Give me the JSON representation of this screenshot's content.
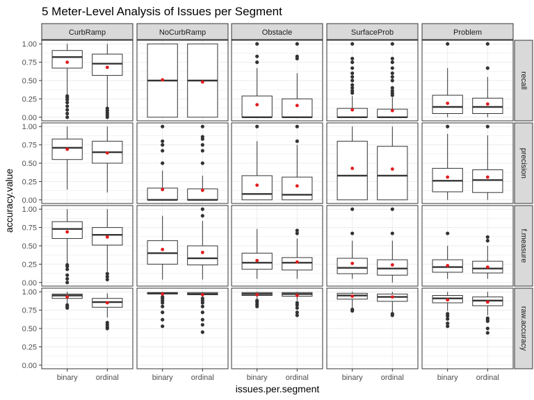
{
  "chart_data": {
    "type": "boxplot",
    "title": "5 Meter-Level Analysis of Issues per Segment",
    "xlabel": "issues.per.segment",
    "ylabel": "accuracy.value",
    "columns": [
      "CurbRamp",
      "NoCurbRamp",
      "Obstacle",
      "SurfaceProb",
      "Problem"
    ],
    "rows": [
      "recall",
      "precision",
      "f.measure",
      "raw.accuracy"
    ],
    "categories": [
      "binary",
      "ordinal"
    ],
    "ylim": [
      0,
      1
    ],
    "yticks": [
      "0.00",
      "0.25",
      "0.50",
      "0.75",
      "1.00"
    ],
    "colors": {
      "strip_bg": "#d9d9d9",
      "panel_border": "#333333",
      "grid": "#ebebeb",
      "box": "#333333",
      "outlier": "#333333",
      "mean": "#e41a1c"
    },
    "series": [
      {
        "row": "recall",
        "column": "CurbRamp",
        "category": "binary",
        "whisker_low": 0.3,
        "q1": 0.67,
        "median": 0.82,
        "q3": 0.91,
        "whisker_high": 1.0,
        "mean": 0.75,
        "outliers": [
          0.0,
          0.05,
          0.1,
          0.15,
          0.2,
          0.24,
          0.27,
          0.29
        ]
      },
      {
        "row": "recall",
        "column": "CurbRamp",
        "category": "ordinal",
        "whisker_low": 0.14,
        "q1": 0.57,
        "median": 0.73,
        "q3": 0.86,
        "whisker_high": 1.0,
        "mean": 0.68,
        "outliers": [
          0.0,
          0.03,
          0.06,
          0.09,
          0.12
        ]
      },
      {
        "row": "recall",
        "column": "NoCurbRamp",
        "category": "binary",
        "whisker_low": 0.0,
        "q1": 0.0,
        "median": 0.5,
        "q3": 1.0,
        "whisker_high": 1.0,
        "mean": 0.51,
        "outliers": []
      },
      {
        "row": "recall",
        "column": "NoCurbRamp",
        "category": "ordinal",
        "whisker_low": 0.0,
        "q1": 0.0,
        "median": 0.5,
        "q3": 1.0,
        "whisker_high": 1.0,
        "mean": 0.48,
        "outliers": []
      },
      {
        "row": "recall",
        "column": "Obstacle",
        "category": "binary",
        "whisker_low": 0.0,
        "q1": 0.0,
        "median": 0.0,
        "q3": 0.29,
        "whisker_high": 0.67,
        "mean": 0.17,
        "outliers": [
          0.75,
          0.83,
          1.0
        ]
      },
      {
        "row": "recall",
        "column": "Obstacle",
        "category": "ordinal",
        "whisker_low": 0.0,
        "q1": 0.0,
        "median": 0.0,
        "q3": 0.25,
        "whisker_high": 0.6,
        "mean": 0.16,
        "outliers": [
          0.8,
          0.83,
          1.0
        ]
      },
      {
        "row": "recall",
        "column": "SurfaceProb",
        "category": "binary",
        "whisker_low": 0.0,
        "q1": 0.0,
        "median": 0.0,
        "q3": 0.12,
        "whisker_high": 0.29,
        "mean": 0.1,
        "outliers": [
          0.33,
          0.36,
          0.4,
          0.44,
          0.5,
          0.55,
          0.6,
          0.67,
          0.75,
          0.8,
          1.0
        ]
      },
      {
        "row": "recall",
        "column": "SurfaceProb",
        "category": "ordinal",
        "whisker_low": 0.0,
        "q1": 0.0,
        "median": 0.0,
        "q3": 0.11,
        "whisker_high": 0.27,
        "mean": 0.09,
        "outliers": [
          0.3,
          0.33,
          0.36,
          0.4,
          0.5,
          0.55,
          0.6,
          0.67,
          0.75,
          0.8,
          1.0
        ]
      },
      {
        "row": "recall",
        "column": "Problem",
        "category": "binary",
        "whisker_low": 0.0,
        "q1": 0.05,
        "median": 0.14,
        "q3": 0.3,
        "whisker_high": 0.67,
        "mean": 0.19,
        "outliers": [
          1.0
        ]
      },
      {
        "row": "recall",
        "column": "Problem",
        "category": "ordinal",
        "whisker_low": 0.0,
        "q1": 0.05,
        "median": 0.14,
        "q3": 0.26,
        "whisker_high": 0.55,
        "mean": 0.18,
        "outliers": [
          0.67,
          1.0
        ]
      },
      {
        "row": "precision",
        "column": "CurbRamp",
        "category": "binary",
        "whisker_low": 0.14,
        "q1": 0.55,
        "median": 0.71,
        "q3": 0.83,
        "whisker_high": 1.0,
        "mean": 0.69,
        "outliers": []
      },
      {
        "row": "precision",
        "column": "CurbRamp",
        "category": "ordinal",
        "whisker_low": 0.1,
        "q1": 0.5,
        "median": 0.65,
        "q3": 0.8,
        "whisker_high": 1.0,
        "mean": 0.64,
        "outliers": []
      },
      {
        "row": "precision",
        "column": "NoCurbRamp",
        "category": "binary",
        "whisker_low": 0.0,
        "q1": 0.0,
        "median": 0.0,
        "q3": 0.16,
        "whisker_high": 0.4,
        "mean": 0.14,
        "outliers": [
          0.5,
          0.67,
          0.75,
          0.8,
          1.0
        ]
      },
      {
        "row": "precision",
        "column": "NoCurbRamp",
        "category": "ordinal",
        "whisker_low": 0.0,
        "q1": 0.0,
        "median": 0.0,
        "q3": 0.15,
        "whisker_high": 0.33,
        "mean": 0.13,
        "outliers": [
          0.5,
          0.67,
          0.75,
          0.83,
          0.86,
          1.0
        ]
      },
      {
        "row": "precision",
        "column": "Obstacle",
        "category": "binary",
        "whisker_low": 0.0,
        "q1": 0.0,
        "median": 0.08,
        "q3": 0.33,
        "whisker_high": 0.8,
        "mean": 0.2,
        "outliers": [
          1.0
        ]
      },
      {
        "row": "precision",
        "column": "Obstacle",
        "category": "ordinal",
        "whisker_low": 0.0,
        "q1": 0.0,
        "median": 0.07,
        "q3": 0.31,
        "whisker_high": 0.75,
        "mean": 0.19,
        "outliers": [
          0.8,
          1.0
        ]
      },
      {
        "row": "precision",
        "column": "SurfaceProb",
        "category": "binary",
        "whisker_low": 0.0,
        "q1": 0.0,
        "median": 0.33,
        "q3": 0.8,
        "whisker_high": 1.0,
        "mean": 0.43,
        "outliers": []
      },
      {
        "row": "precision",
        "column": "SurfaceProb",
        "category": "ordinal",
        "whisker_low": 0.0,
        "q1": 0.0,
        "median": 0.33,
        "q3": 0.73,
        "whisker_high": 1.0,
        "mean": 0.42,
        "outliers": []
      },
      {
        "row": "precision",
        "column": "Problem",
        "category": "binary",
        "whisker_low": 0.0,
        "q1": 0.11,
        "median": 0.26,
        "q3": 0.43,
        "whisker_high": 0.9,
        "mean": 0.31,
        "outliers": [
          1.0
        ]
      },
      {
        "row": "precision",
        "column": "Problem",
        "category": "ordinal",
        "whisker_low": 0.0,
        "q1": 0.1,
        "median": 0.27,
        "q3": 0.41,
        "whisker_high": 0.88,
        "mean": 0.31,
        "outliers": [
          1.0
        ]
      },
      {
        "row": "f.measure",
        "column": "CurbRamp",
        "category": "binary",
        "whisker_low": 0.25,
        "q1": 0.6,
        "median": 0.73,
        "q3": 0.83,
        "whisker_high": 1.0,
        "mean": 0.69,
        "outliers": [
          0.0,
          0.05,
          0.1,
          0.18,
          0.22,
          0.24
        ]
      },
      {
        "row": "f.measure",
        "column": "CurbRamp",
        "category": "ordinal",
        "whisker_low": 0.15,
        "q1": 0.51,
        "median": 0.65,
        "q3": 0.75,
        "whisker_high": 1.0,
        "mean": 0.62,
        "outliers": [
          0.04,
          0.08,
          0.12
        ]
      },
      {
        "row": "f.measure",
        "column": "NoCurbRamp",
        "category": "binary",
        "whisker_low": 0.04,
        "q1": 0.25,
        "median": 0.4,
        "q3": 0.57,
        "whisker_high": 0.91,
        "mean": 0.45,
        "outliers": []
      },
      {
        "row": "f.measure",
        "column": "NoCurbRamp",
        "category": "ordinal",
        "whisker_low": 0.04,
        "q1": 0.24,
        "median": 0.33,
        "q3": 0.5,
        "whisker_high": 0.84,
        "mean": 0.41,
        "outliers": [
          0.91,
          1.0
        ]
      },
      {
        "row": "f.measure",
        "column": "Obstacle",
        "category": "binary",
        "whisker_low": 0.05,
        "q1": 0.18,
        "median": 0.27,
        "q3": 0.4,
        "whisker_high": 0.73,
        "mean": 0.3,
        "outliers": []
      },
      {
        "row": "f.measure",
        "column": "Obstacle",
        "category": "ordinal",
        "whisker_low": 0.05,
        "q1": 0.17,
        "median": 0.27,
        "q3": 0.34,
        "whisker_high": 0.6,
        "mean": 0.28,
        "outliers": [
          0.67,
          0.71
        ]
      },
      {
        "row": "f.measure",
        "column": "SurfaceProb",
        "category": "binary",
        "whisker_low": 0.05,
        "q1": 0.12,
        "median": 0.2,
        "q3": 0.33,
        "whisker_high": 0.57,
        "mean": 0.26,
        "outliers": [
          0.67,
          1.0
        ]
      },
      {
        "row": "f.measure",
        "column": "SurfaceProb",
        "category": "ordinal",
        "whisker_low": 0.0,
        "q1": 0.1,
        "median": 0.19,
        "q3": 0.31,
        "whisker_high": 0.57,
        "mean": 0.24,
        "outliers": [
          0.67,
          1.0
        ]
      },
      {
        "row": "f.measure",
        "column": "Problem",
        "category": "binary",
        "whisker_low": 0.05,
        "q1": 0.14,
        "median": 0.21,
        "q3": 0.31,
        "whisker_high": 0.5,
        "mean": 0.23,
        "outliers": [
          0.67
        ]
      },
      {
        "row": "f.measure",
        "column": "Problem",
        "category": "ordinal",
        "whisker_low": 0.05,
        "q1": 0.13,
        "median": 0.19,
        "q3": 0.29,
        "whisker_high": 0.5,
        "mean": 0.21,
        "outliers": [
          0.57,
          0.62
        ]
      },
      {
        "row": "raw.accuracy",
        "column": "CurbRamp",
        "category": "binary",
        "whisker_low": 0.83,
        "q1": 0.91,
        "median": 0.95,
        "q3": 0.97,
        "whisker_high": 1.0,
        "mean": 0.93,
        "outliers": [
          0.78,
          0.8,
          0.82
        ]
      },
      {
        "row": "raw.accuracy",
        "column": "CurbRamp",
        "category": "ordinal",
        "whisker_low": 0.65,
        "q1": 0.79,
        "median": 0.86,
        "q3": 0.91,
        "whisker_high": 0.98,
        "mean": 0.85,
        "outliers": [
          0.5,
          0.52,
          0.55,
          0.58
        ]
      },
      {
        "row": "raw.accuracy",
        "column": "NoCurbRamp",
        "category": "binary",
        "whisker_low": 0.95,
        "q1": 0.97,
        "median": 0.98,
        "q3": 0.99,
        "whisker_high": 1.0,
        "mean": 0.97,
        "outliers": [
          0.53,
          0.62,
          0.72,
          0.8,
          0.85,
          0.88,
          0.91,
          0.93
        ]
      },
      {
        "row": "raw.accuracy",
        "column": "NoCurbRamp",
        "category": "ordinal",
        "whisker_low": 0.93,
        "q1": 0.96,
        "median": 0.97,
        "q3": 0.99,
        "whisker_high": 1.0,
        "mean": 0.96,
        "outliers": [
          0.45,
          0.55,
          0.62,
          0.72,
          0.8,
          0.85,
          0.88,
          0.91
        ]
      },
      {
        "row": "raw.accuracy",
        "column": "Obstacle",
        "category": "binary",
        "whisker_low": 0.9,
        "q1": 0.95,
        "median": 0.97,
        "q3": 0.99,
        "whisker_high": 1.0,
        "mean": 0.96,
        "outliers": [
          0.8,
          0.83,
          0.86,
          0.88
        ]
      },
      {
        "row": "raw.accuracy",
        "column": "Obstacle",
        "category": "ordinal",
        "whisker_low": 0.88,
        "q1": 0.94,
        "median": 0.97,
        "q3": 0.99,
        "whisker_high": 1.0,
        "mean": 0.95,
        "outliers": [
          0.68,
          0.72,
          0.78,
          0.82,
          0.85
        ]
      },
      {
        "row": "raw.accuracy",
        "column": "SurfaceProb",
        "category": "binary",
        "whisker_low": 0.78,
        "q1": 0.9,
        "median": 0.95,
        "q3": 0.98,
        "whisker_high": 1.0,
        "mean": 0.94,
        "outliers": [
          0.74,
          0.76
        ]
      },
      {
        "row": "raw.accuracy",
        "column": "SurfaceProb",
        "category": "ordinal",
        "whisker_low": 0.72,
        "q1": 0.87,
        "median": 0.93,
        "q3": 0.97,
        "whisker_high": 1.0,
        "mean": 0.93,
        "outliers": [
          0.68,
          0.7
        ]
      },
      {
        "row": "raw.accuracy",
        "column": "Problem",
        "category": "binary",
        "whisker_low": 0.74,
        "q1": 0.85,
        "median": 0.91,
        "q3": 0.95,
        "whisker_high": 1.0,
        "mean": 0.89,
        "outliers": [
          0.53,
          0.57,
          0.63,
          0.67,
          0.7
        ]
      },
      {
        "row": "raw.accuracy",
        "column": "Problem",
        "category": "ordinal",
        "whisker_low": 0.68,
        "q1": 0.81,
        "median": 0.88,
        "q3": 0.93,
        "whisker_high": 1.0,
        "mean": 0.86,
        "outliers": [
          0.44,
          0.5,
          0.6,
          0.62,
          0.64
        ]
      }
    ]
  }
}
